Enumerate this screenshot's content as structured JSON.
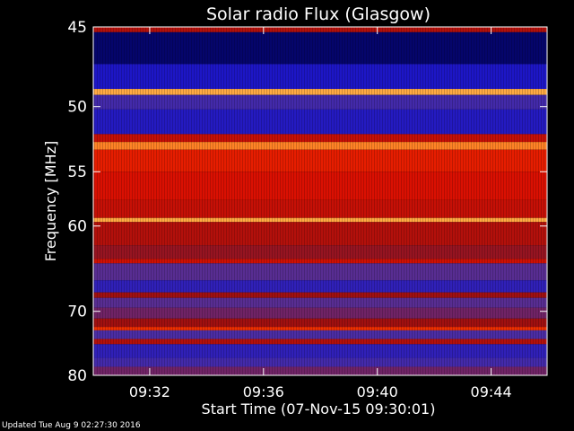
{
  "chart_data": {
    "type": "heatmap",
    "title": "Solar radio Flux (Glasgow)",
    "xlabel": "Start Time (07-Nov-15 09:30:01)",
    "ylabel": "Frequency [MHz]",
    "x_range_minutes": [
      "09:30:01",
      "09:45:58"
    ],
    "ylim": [
      45,
      80
    ],
    "y_scale": "reciprocal",
    "x_ticks": [
      "09:32",
      "09:36",
      "09:40",
      "09:44"
    ],
    "y_ticks": [
      45,
      50,
      55,
      60,
      70,
      80
    ],
    "colormap": [
      "#000040",
      "#1010d0",
      "#5030a0",
      "#a01010",
      "#e01000",
      "#ff5000",
      "#ffd060"
    ],
    "bands": [
      {
        "from_mhz": 45.0,
        "to_mhz": 45.3,
        "level": 0.55
      },
      {
        "from_mhz": 45.3,
        "to_mhz": 47.2,
        "level": 0.05
      },
      {
        "from_mhz": 47.2,
        "to_mhz": 48.8,
        "level": 0.2
      },
      {
        "from_mhz": 48.8,
        "to_mhz": 49.2,
        "level": 0.95
      },
      {
        "from_mhz": 49.2,
        "to_mhz": 50.2,
        "level": 0.3
      },
      {
        "from_mhz": 50.2,
        "to_mhz": 52.0,
        "level": 0.22
      },
      {
        "from_mhz": 52.0,
        "to_mhz": 52.6,
        "level": 0.6
      },
      {
        "from_mhz": 52.6,
        "to_mhz": 53.2,
        "level": 0.9
      },
      {
        "from_mhz": 53.2,
        "to_mhz": 55.0,
        "level": 0.7
      },
      {
        "from_mhz": 55.0,
        "to_mhz": 57.5,
        "level": 0.65
      },
      {
        "from_mhz": 57.5,
        "to_mhz": 59.2,
        "level": 0.6
      },
      {
        "from_mhz": 59.2,
        "to_mhz": 59.6,
        "level": 0.95
      },
      {
        "from_mhz": 59.6,
        "to_mhz": 62.0,
        "level": 0.55
      },
      {
        "from_mhz": 62.0,
        "to_mhz": 63.5,
        "level": 0.48
      },
      {
        "from_mhz": 63.5,
        "to_mhz": 64.0,
        "level": 0.62
      },
      {
        "from_mhz": 64.0,
        "to_mhz": 66.0,
        "level": 0.35
      },
      {
        "from_mhz": 66.0,
        "to_mhz": 67.5,
        "level": 0.25
      },
      {
        "from_mhz": 67.5,
        "to_mhz": 68.2,
        "level": 0.5
      },
      {
        "from_mhz": 68.2,
        "to_mhz": 69.5,
        "level": 0.35
      },
      {
        "from_mhz": 69.5,
        "to_mhz": 71.0,
        "level": 0.4
      },
      {
        "from_mhz": 71.0,
        "to_mhz": 72.2,
        "level": 0.5
      },
      {
        "from_mhz": 72.2,
        "to_mhz": 72.7,
        "level": 0.75
      },
      {
        "from_mhz": 72.7,
        "to_mhz": 74.0,
        "level": 0.32
      },
      {
        "from_mhz": 74.0,
        "to_mhz": 74.8,
        "level": 0.55
      },
      {
        "from_mhz": 74.8,
        "to_mhz": 77.0,
        "level": 0.25
      },
      {
        "from_mhz": 77.0,
        "to_mhz": 78.5,
        "level": 0.3
      },
      {
        "from_mhz": 78.5,
        "to_mhz": 80.0,
        "level": 0.4
      }
    ]
  },
  "footer": {
    "updated_text": "Updated Tue Aug  9 02:27:30 2016"
  }
}
